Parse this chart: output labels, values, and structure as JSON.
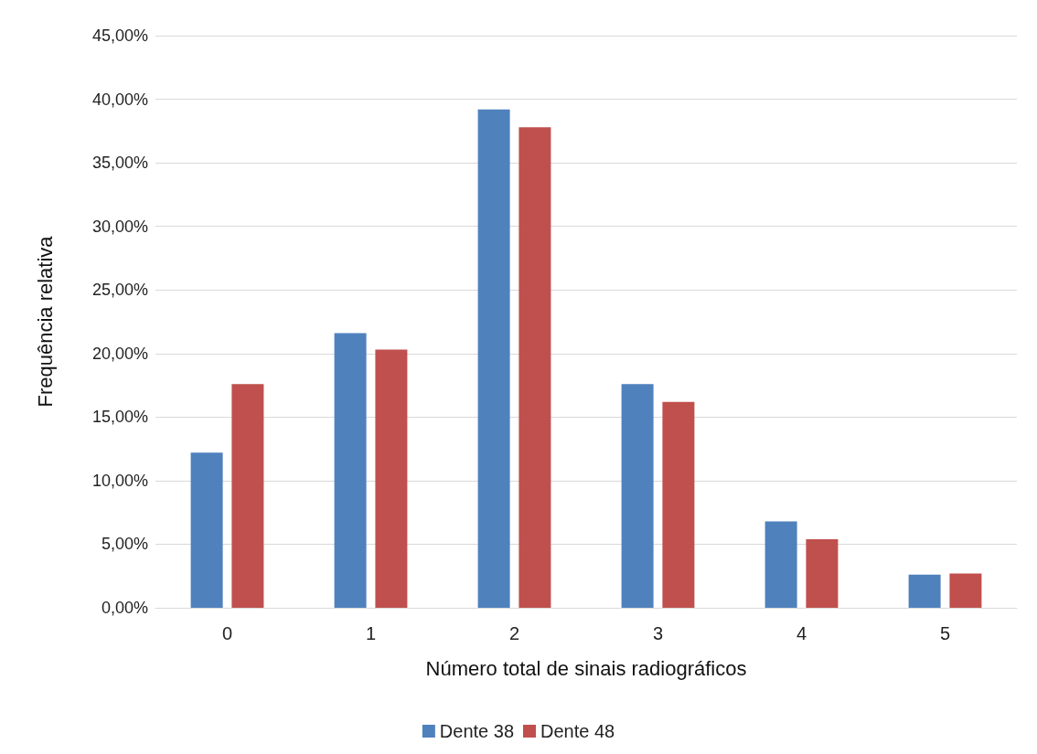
{
  "chart_data": {
    "type": "bar",
    "xlabel": "Número total de sinais radiográficos",
    "ylabel": "Frequência relativa",
    "categories": [
      "0",
      "1",
      "2",
      "3",
      "4",
      "5"
    ],
    "series": [
      {
        "name": "Dente 38",
        "color": "#4f81bd",
        "values": [
          12.2,
          21.6,
          39.2,
          17.6,
          6.8,
          2.6
        ]
      },
      {
        "name": "Dente 48",
        "color": "#c0504d",
        "values": [
          17.6,
          20.3,
          37.8,
          16.2,
          5.4,
          2.7
        ]
      }
    ],
    "ylim": [
      0,
      45
    ],
    "yticks": [
      {
        "value": 0,
        "label": "0,00%"
      },
      {
        "value": 5,
        "label": "5,00%"
      },
      {
        "value": 10,
        "label": "10,00%"
      },
      {
        "value": 15,
        "label": "15,00%"
      },
      {
        "value": 20,
        "label": "20,00%"
      },
      {
        "value": 25,
        "label": "25,00%"
      },
      {
        "value": 30,
        "label": "30,00%"
      },
      {
        "value": 35,
        "label": "35,00%"
      },
      {
        "value": 40,
        "label": "40,00%"
      },
      {
        "value": 45,
        "label": "45,00%"
      }
    ],
    "grid": "y",
    "legend": "bottom"
  }
}
